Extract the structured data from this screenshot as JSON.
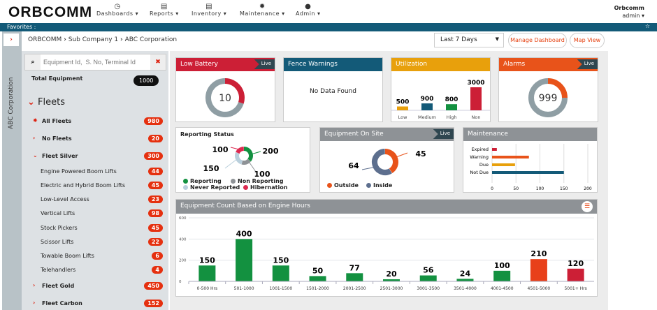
{
  "header": {
    "logo": "ORBCOMM",
    "nav": [
      {
        "label": "Dashboards ▾",
        "icon": "dashboard-icon"
      },
      {
        "label": "Reports ▾",
        "icon": "report-icon"
      },
      {
        "label": "Inventory ▾",
        "icon": "inventory-icon"
      },
      {
        "label": "Maintenance ▾",
        "icon": "gear-icon"
      },
      {
        "label": "Admin ▾",
        "icon": "user-icon"
      }
    ],
    "user": {
      "company": "Orbcomm",
      "name": "admin ▾"
    }
  },
  "favorites": {
    "label": "Favorites :"
  },
  "strip": {
    "label": "ABC Corporation"
  },
  "breadcrumb": [
    "ORBCOMM",
    "Sub Company 1",
    "ABC Corporation"
  ],
  "toolbar": {
    "range": "Last 7 Days",
    "manage": "Manage Dashboard",
    "map": "Map View"
  },
  "sidebar": {
    "search_placeholder": "Equipment Id,  S. No, Terminal Id",
    "total_label": "Total Equipment",
    "total": "1000",
    "fleets_title": "Fleets",
    "items": [
      {
        "label": "All Fleets",
        "count": "980",
        "level": 0,
        "icon": "✸"
      },
      {
        "label": "No Fleets",
        "count": "20",
        "level": 0,
        "icon": "›"
      },
      {
        "label": "Fleet Silver",
        "count": "300",
        "level": 0,
        "icon": "⌄"
      },
      {
        "label": "Engine Powered Boom Lifts",
        "count": "44",
        "level": 1
      },
      {
        "label": "Electric and Hybrid Boom Lifts",
        "count": "45",
        "level": 1
      },
      {
        "label": "Low-Level Access",
        "count": "23",
        "level": 1
      },
      {
        "label": "Vertical Lifts",
        "count": "98",
        "level": 1
      },
      {
        "label": "Stock Pickers",
        "count": "45",
        "level": 1
      },
      {
        "label": "Scissor Lifts",
        "count": "22",
        "level": 1
      },
      {
        "label": "Towable Boom Lifts",
        "count": "6",
        "level": 1
      },
      {
        "label": "Telehandlers",
        "count": "4",
        "level": 1
      },
      {
        "label": "Fleet Gold",
        "count": "450",
        "level": 0,
        "icon": "›"
      },
      {
        "label": "Fleet Carbon",
        "count": "152",
        "level": 0,
        "icon": "›"
      }
    ]
  },
  "live_label": "Live",
  "colors": {
    "red": "#cc1f36",
    "teal": "#135a78",
    "amber": "#e8a00c",
    "orange": "#e8531a",
    "gray": "#8e9296",
    "green": "#139140",
    "grayring": "#8f9ea4"
  },
  "cards": {
    "low_battery": {
      "title": "Low Battery",
      "value": "10",
      "fraction": 0.3
    },
    "fence": {
      "title": "Fence Warnings",
      "empty": "No Data Found"
    },
    "utilization": {
      "title": "Utilization",
      "categories": [
        "Low",
        "Medium",
        "High",
        "Non"
      ],
      "values": [
        500,
        900,
        800,
        3000
      ],
      "colors": [
        "#e8a00c",
        "#135a78",
        "#139140",
        "#cc1f36"
      ]
    },
    "alarms": {
      "title": "Alarms",
      "value": "999",
      "fraction": 0.25
    },
    "reporting": {
      "title": "Reporting Status",
      "slices": [
        {
          "name": "Reporting",
          "value": 200,
          "color": "#139140"
        },
        {
          "name": "Non Reporting",
          "value": 100,
          "color": "#8e9296"
        },
        {
          "name": "Never Reported",
          "value": 150,
          "color": "#b9cfdc"
        },
        {
          "name": "Hibernation",
          "value": 100,
          "color": "#dc2a50"
        }
      ]
    },
    "onsite": {
      "title": "Equipment On Site",
      "slices": [
        {
          "name": "Outside",
          "value": 45,
          "color": "#e8531a"
        },
        {
          "name": "Inside",
          "value": 64,
          "color": "#5d6f8e"
        }
      ]
    },
    "maintenance": {
      "title": "Maintenance",
      "categories": [
        "Expired",
        "Warning",
        "Due",
        "Not Due"
      ],
      "values": [
        10,
        77,
        48,
        150
      ],
      "colors": [
        "#cc1f36",
        "#e8531a",
        "#e8a00c",
        "#135a78"
      ],
      "ticks": [
        0,
        50,
        100,
        150,
        200
      ]
    }
  },
  "chart_data": {
    "type": "bar",
    "title": "Equipment Count Based on Engine Hours",
    "categories": [
      "0-500 Hrs",
      "501-1000",
      "1001-1500",
      "1501-2000",
      "2001-2500",
      "2501-3000",
      "3001-3500",
      "3501-4000",
      "4001-4500",
      "4501-5000",
      "5001+ Hrs"
    ],
    "values": [
      150,
      400,
      150,
      50,
      77,
      20,
      56,
      24,
      100,
      210,
      120
    ],
    "colors": [
      "#139140",
      "#139140",
      "#139140",
      "#139140",
      "#139140",
      "#139140",
      "#139140",
      "#139140",
      "#139140",
      "#e8401a",
      "#cc1f36"
    ],
    "ylim": [
      0,
      600
    ],
    "yticks": [
      0,
      200,
      400,
      600
    ],
    "grid": true
  }
}
